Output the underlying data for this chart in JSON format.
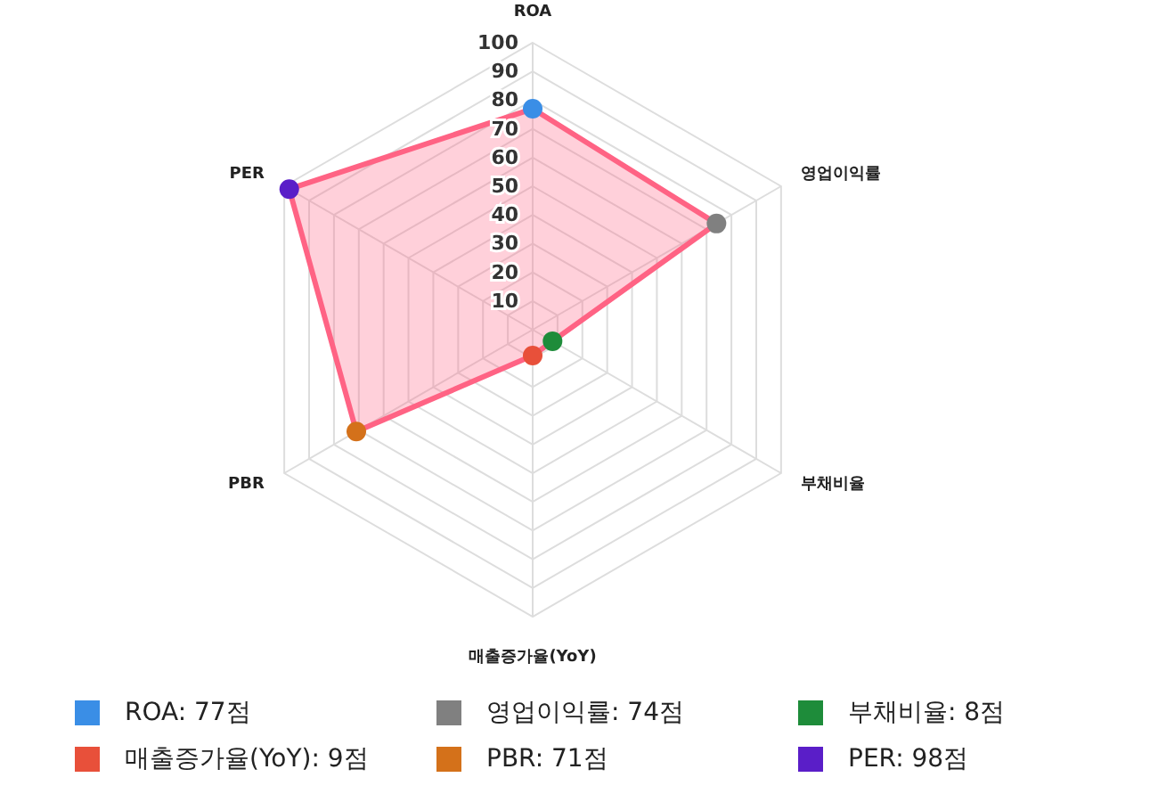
{
  "chart_data": {
    "type": "radar",
    "categories": [
      "ROA",
      "영업이익률",
      "부채비율",
      "매출증가율(YoY)",
      "PBR",
      "PER"
    ],
    "series": [
      {
        "color": "#ff6384",
        "values": [
          77,
          74,
          8,
          9,
          71,
          98
        ],
        "colors": [
          "#3a8ee6",
          "#808080",
          "#1e8c3a",
          "#e8503a",
          "#d4711a",
          "#5a1ec8"
        ]
      }
    ],
    "annotations": [
      "ROA: 77점",
      "영업이익률: 74점",
      "부채비율: 8점",
      "매출증가율(YoY): 9점",
      "PBR: 71점",
      "PER: 98점"
    ],
    "ylim": [
      0,
      100
    ],
    "yticks": [
      10,
      20,
      30,
      40,
      50,
      60,
      70,
      80,
      90,
      100
    ],
    "grid": true,
    "marker": "circle"
  }
}
